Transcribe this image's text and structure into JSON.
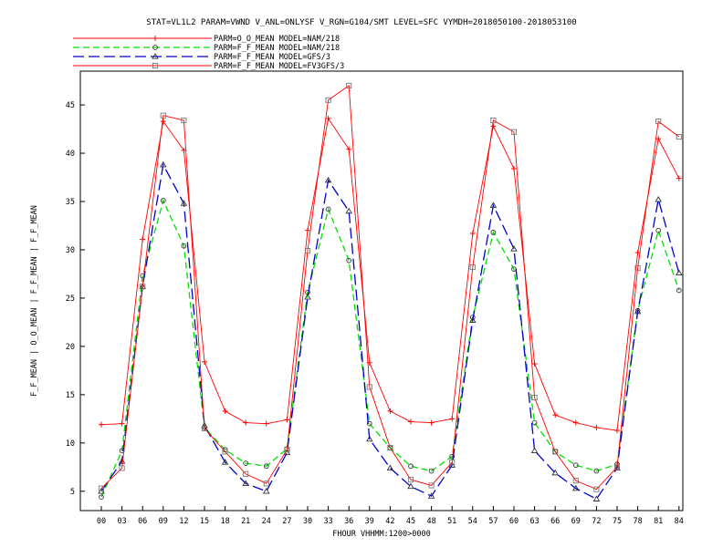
{
  "chart_data": {
    "type": "line",
    "title": "STAT=VL1L2 PARAM=VWND V_ANL=ONLYSF V_RGN=G104/SMT LEVEL=SFC VYMDH=2018050100-2018053100",
    "xlabel": "FHOUR VHHMM:1200>0000",
    "ylabel": "F_F_MEAN | O_O_MEAN | F_F_MEAN | F_F_MEAN",
    "categories": [
      "00",
      "03",
      "06",
      "09",
      "12",
      "15",
      "18",
      "21",
      "24",
      "27",
      "30",
      "33",
      "36",
      "39",
      "42",
      "45",
      "48",
      "51",
      "54",
      "57",
      "60",
      "63",
      "66",
      "69",
      "72",
      "75",
      "78",
      "81",
      "84"
    ],
    "ylim": [
      3,
      48.5
    ],
    "yticks": [
      5,
      10,
      15,
      20,
      25,
      30,
      35,
      40,
      45
    ],
    "grid": false,
    "legend_position": "top-left",
    "series": [
      {
        "name": "PARM=O_O_MEAN MODEL=NAM/218",
        "color": "#ff0000",
        "dash": "solid",
        "marker": "plus",
        "values": [
          11.9,
          12.0,
          31.1,
          43.3,
          40.3,
          18.4,
          13.3,
          12.1,
          12.0,
          12.4,
          32.0,
          43.6,
          40.4,
          18.3,
          13.3,
          12.2,
          12.1,
          12.5,
          31.7,
          42.8,
          38.4,
          18.2,
          12.9,
          12.1,
          11.6,
          11.3,
          29.7,
          41.5,
          37.4
        ]
      },
      {
        "name": "PARM=F_F_MEAN MODEL=NAM/218",
        "color": "#00e000",
        "dash": "dashed",
        "marker": "circle",
        "values": [
          4.4,
          9.2,
          27.3,
          35.1,
          30.4,
          11.6,
          9.3,
          7.9,
          7.6,
          9.4,
          25.6,
          34.2,
          28.9,
          12.0,
          9.5,
          7.6,
          7.1,
          8.6,
          23.0,
          31.8,
          28.0,
          12.1,
          9.1,
          7.7,
          7.1,
          7.8,
          23.7,
          32.0,
          25.8
        ]
      },
      {
        "name": "PARM=F_F_MEAN MODEL=GFS/3",
        "color": "#0000cc",
        "dash": "longdash",
        "marker": "triangle",
        "values": [
          5.0,
          8.1,
          26.2,
          38.8,
          34.8,
          11.8,
          8.0,
          5.8,
          5.0,
          9.0,
          25.1,
          37.2,
          34.0,
          10.4,
          7.4,
          5.5,
          4.5,
          7.7,
          22.7,
          34.6,
          30.1,
          9.2,
          6.9,
          5.3,
          4.2,
          7.4,
          23.6,
          35.2,
          27.6
        ]
      },
      {
        "name": "PARM=F_F_MEAN MODEL=FV3GFS/3",
        "color": "#ff0000",
        "dash": "solid",
        "marker": "square",
        "values": [
          5.3,
          7.4,
          26.2,
          43.9,
          43.4,
          11.5,
          9.1,
          6.8,
          5.8,
          9.3,
          29.9,
          45.5,
          47.0,
          15.8,
          9.5,
          6.2,
          5.6,
          8.0,
          28.2,
          43.4,
          42.2,
          14.7,
          9.1,
          6.1,
          5.2,
          7.5,
          28.1,
          43.3,
          41.7
        ]
      }
    ]
  }
}
